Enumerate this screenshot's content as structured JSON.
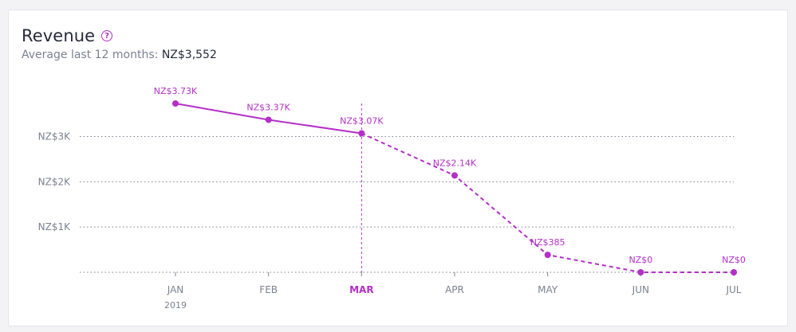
{
  "header": {
    "title": "Revenue",
    "help_icon": "question-circle-icon",
    "average_label": "Average last 12 months:",
    "average_value": "NZ$3,552"
  },
  "chart_data": {
    "type": "line",
    "title": "Revenue",
    "categories": [
      "JAN",
      "FEB",
      "MAR",
      "APR",
      "MAY",
      "JUN",
      "JUL"
    ],
    "year_label": "2019",
    "highlighted_category": "MAR",
    "series": [
      {
        "values": [
          3730,
          3370,
          3070,
          2140,
          385,
          0,
          0
        ],
        "data_labels": [
          "NZ$3.73K",
          "NZ$3.37K",
          "NZ$3.07K",
          "NZ$2.14K",
          "NZ$385",
          "NZ$0",
          "NZ$0"
        ],
        "solid_through_index": 2
      }
    ],
    "ylim": [
      0,
      3730
    ],
    "yticks": [
      {
        "value": 1000,
        "label": "NZ$1K"
      },
      {
        "value": 2000,
        "label": "NZ$2K"
      },
      {
        "value": 3000,
        "label": "NZ$3K"
      }
    ],
    "grid": true,
    "colors": {
      "line": "#b32fc7",
      "grid": "#7d8090",
      "text": "#7d8090"
    }
  }
}
